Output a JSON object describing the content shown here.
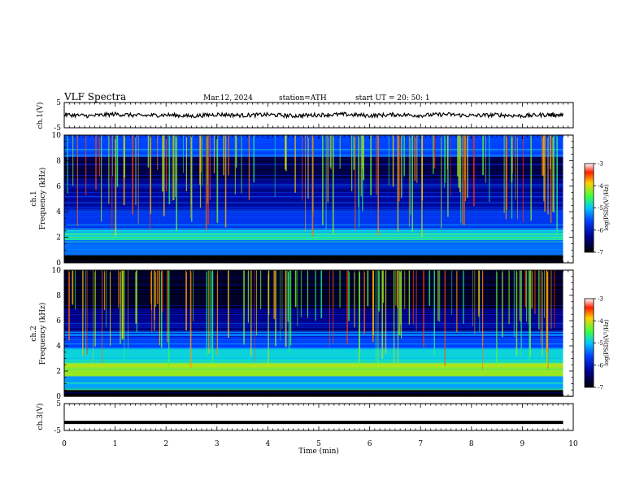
{
  "header": {
    "title": "VLF  Spectra",
    "date": "Mar.12, 2024",
    "station": "station=ATH",
    "start_ut": "start  UT  =    20: 50: 1"
  },
  "chart_data": [
    {
      "type": "line",
      "panel": "ch1-waveform",
      "ylabel": "ch.1(V)",
      "ylim": [
        -5,
        5
      ],
      "yticks": [
        "5",
        "-5"
      ],
      "x": [
        0,
        0.5,
        1,
        1.5,
        2,
        2.5,
        3,
        3.5,
        4,
        4.5,
        5,
        5.5,
        6,
        6.5,
        7,
        7.5,
        8,
        8.5,
        9,
        9.5,
        9.8
      ],
      "values": [
        0.2,
        -0.3,
        0.4,
        -0.2,
        0.1,
        -0.4,
        0.3,
        -0.1,
        0.2,
        -0.3,
        0.1,
        0.3,
        -0.2,
        0.2,
        -0.1,
        0.3,
        -0.2,
        0.1,
        -0.3,
        0.2,
        0.0
      ],
      "color": "#000000"
    },
    {
      "type": "heatmap",
      "panel": "ch1-spectrogram",
      "ylabel": "ch.1\nFrequency  (kHz)",
      "ylim": [
        0,
        10
      ],
      "yticks": [
        "0",
        "2",
        "4",
        "6",
        "8",
        "10"
      ],
      "colorbar": {
        "label": "log(PSD)(V²/Hz)",
        "ticks": [
          "-3",
          "-4",
          "-5",
          "-6",
          "-7"
        ],
        "range": [
          -7,
          -3
        ]
      },
      "bands_khz": [
        {
          "from": 0.0,
          "to": 0.6,
          "level": -7
        },
        {
          "from": 0.6,
          "to": 1.8,
          "level": -5.4
        },
        {
          "from": 1.8,
          "to": 2.6,
          "level": -4.9
        },
        {
          "from": 2.6,
          "to": 4.2,
          "level": -5.7
        },
        {
          "from": 4.2,
          "to": 6.5,
          "level": -6.2
        },
        {
          "from": 6.5,
          "to": 8.3,
          "level": -6.6
        },
        {
          "from": 8.3,
          "to": 10.0,
          "level": -5.6
        }
      ]
    },
    {
      "type": "heatmap",
      "panel": "ch2-spectrogram",
      "ylabel": "ch.2\nFrequency  (kHz)",
      "ylim": [
        0,
        10
      ],
      "yticks": [
        "0",
        "2",
        "4",
        "6",
        "8",
        "10"
      ],
      "colorbar": {
        "label": "log(PSD)(V²/Hz)",
        "ticks": [
          "-3",
          "-4",
          "-5",
          "-6",
          "-7"
        ],
        "range": [
          -7,
          -3
        ]
      },
      "bands_khz": [
        {
          "from": 0.0,
          "to": 0.5,
          "level": -7
        },
        {
          "from": 0.5,
          "to": 1.6,
          "level": -5.2
        },
        {
          "from": 1.6,
          "to": 2.6,
          "level": -4.2
        },
        {
          "from": 2.6,
          "to": 3.8,
          "level": -4.9
        },
        {
          "from": 3.8,
          "to": 5.2,
          "level": -5.6
        },
        {
          "from": 5.2,
          "to": 7.0,
          "level": -6.3
        },
        {
          "from": 7.0,
          "to": 10.0,
          "level": -6.8
        }
      ]
    },
    {
      "type": "line",
      "panel": "ch3-waveform",
      "ylabel": "ch.3(V)",
      "ylim": [
        -5,
        5
      ],
      "yticks": [
        "5",
        "-5"
      ],
      "x": [
        0,
        9.8
      ],
      "values": [
        -2,
        -2
      ],
      "color": "#000000"
    }
  ],
  "x_axis": {
    "label": "Time  (min)",
    "range": [
      0,
      10
    ],
    "ticks": [
      "0",
      "1",
      "2",
      "3",
      "4",
      "5",
      "6",
      "7",
      "8",
      "9",
      "10"
    ]
  }
}
